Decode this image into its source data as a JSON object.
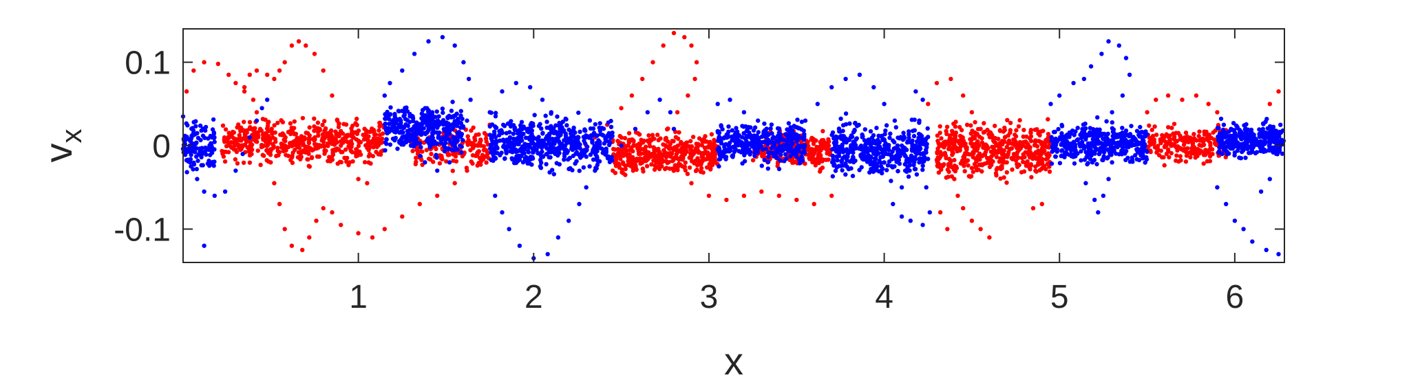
{
  "chart_data": {
    "type": "scatter",
    "title": "",
    "xlabel": "x",
    "ylabel": "v",
    "ylabel_subscript": "x",
    "xlim": [
      0,
      6.2832
    ],
    "ylim": [
      -0.14,
      0.14
    ],
    "xticks": [
      1,
      2,
      3,
      4,
      5,
      6
    ],
    "xtick_labels": [
      "1",
      "2",
      "3",
      "4",
      "5",
      "6"
    ],
    "yticks": [
      -0.1,
      0,
      0.1
    ],
    "ytick_labels": [
      "-0.1",
      "0",
      "0.1"
    ],
    "grid": false,
    "legend": "none",
    "series": [
      {
        "color": "#ff0000",
        "points": [
          [
            0.02,
            0.065
          ],
          [
            0.06,
            0.09
          ],
          [
            0.12,
            0.1
          ],
          [
            0.2,
            0.098
          ],
          [
            0.26,
            0.085
          ],
          [
            0.3,
            0.075
          ],
          [
            0.35,
            0.065
          ],
          [
            0.4,
            0.055
          ],
          [
            0.42,
            0.04
          ],
          [
            0.44,
            0.02
          ],
          [
            0.46,
            0.0
          ],
          [
            0.5,
            -0.02
          ],
          [
            0.52,
            -0.045
          ],
          [
            0.55,
            -0.07
          ],
          [
            0.58,
            -0.1
          ],
          [
            0.62,
            -0.12
          ],
          [
            0.68,
            -0.125
          ],
          [
            0.72,
            -0.11
          ],
          [
            0.76,
            -0.09
          ],
          [
            0.8,
            -0.075
          ],
          [
            0.85,
            -0.08
          ],
          [
            0.9,
            -0.095
          ],
          [
            1.0,
            -0.105
          ],
          [
            1.08,
            -0.11
          ],
          [
            1.15,
            -0.1
          ],
          [
            1.25,
            -0.085
          ],
          [
            1.35,
            -0.07
          ],
          [
            1.45,
            -0.06
          ],
          [
            1.55,
            -0.045
          ],
          [
            1.62,
            -0.03
          ],
          [
            1.68,
            -0.01
          ],
          [
            1.7,
            0.0
          ],
          [
            1.72,
            0.015
          ],
          [
            1.75,
            0.025
          ],
          [
            0.35,
            0.07
          ],
          [
            0.38,
            0.085
          ],
          [
            0.42,
            0.09
          ],
          [
            0.48,
            0.085
          ],
          [
            0.52,
            0.08
          ],
          [
            0.55,
            0.09
          ],
          [
            0.58,
            0.1
          ],
          [
            0.62,
            0.12
          ],
          [
            0.66,
            0.125
          ],
          [
            0.7,
            0.12
          ],
          [
            0.75,
            0.11
          ],
          [
            0.8,
            0.09
          ],
          [
            0.85,
            0.06
          ],
          [
            0.88,
            0.03
          ],
          [
            0.9,
            0.0
          ],
          [
            0.95,
            -0.02
          ],
          [
            1.0,
            -0.04
          ],
          [
            1.05,
            -0.045
          ],
          [
            2.3,
            0.0
          ],
          [
            2.35,
            0.01
          ],
          [
            2.42,
            0.025
          ],
          [
            2.5,
            0.045
          ],
          [
            2.56,
            0.06
          ],
          [
            2.62,
            0.08
          ],
          [
            2.68,
            0.1
          ],
          [
            2.74,
            0.12
          ],
          [
            2.8,
            0.135
          ],
          [
            2.86,
            0.13
          ],
          [
            2.9,
            0.12
          ],
          [
            2.93,
            0.1
          ],
          [
            2.92,
            0.08
          ],
          [
            2.88,
            0.06
          ],
          [
            2.82,
            0.04
          ],
          [
            2.6,
            -0.01
          ],
          [
            2.7,
            -0.02
          ],
          [
            2.8,
            -0.03
          ],
          [
            2.9,
            -0.045
          ],
          [
            3.0,
            -0.06
          ],
          [
            3.1,
            -0.065
          ],
          [
            3.2,
            -0.06
          ],
          [
            3.3,
            -0.055
          ],
          [
            3.4,
            -0.06
          ],
          [
            3.5,
            -0.065
          ],
          [
            3.6,
            -0.07
          ],
          [
            3.7,
            -0.06
          ],
          [
            4.25,
            0.05
          ],
          [
            4.3,
            0.075
          ],
          [
            4.38,
            0.08
          ],
          [
            4.45,
            0.06
          ],
          [
            4.5,
            0.04
          ],
          [
            4.55,
            0.02
          ],
          [
            4.4,
            -0.04
          ],
          [
            4.42,
            -0.06
          ],
          [
            4.45,
            -0.075
          ],
          [
            4.5,
            -0.09
          ],
          [
            4.55,
            -0.1
          ],
          [
            4.6,
            -0.11
          ],
          [
            4.32,
            -0.08
          ],
          [
            4.36,
            -0.1
          ],
          [
            4.85,
            -0.075
          ],
          [
            4.9,
            -0.07
          ],
          [
            5.5,
            0.04
          ],
          [
            5.55,
            0.055
          ],
          [
            5.62,
            0.06
          ],
          [
            5.7,
            0.055
          ],
          [
            5.78,
            0.06
          ],
          [
            5.85,
            0.05
          ],
          [
            5.9,
            0.04
          ],
          [
            6.2,
            0.05
          ],
          [
            6.25,
            0.065
          ]
        ],
        "clusters": [
          {
            "x0": 0.22,
            "x1": 1.15,
            "y0": -0.03,
            "y1": 0.04,
            "n": 520
          },
          {
            "x0": 1.3,
            "x1": 1.75,
            "y0": -0.04,
            "y1": 0.03,
            "n": 160
          },
          {
            "x0": 2.45,
            "x1": 3.05,
            "y0": -0.045,
            "y1": 0.025,
            "n": 420
          },
          {
            "x0": 3.25,
            "x1": 3.7,
            "y0": -0.035,
            "y1": 0.025,
            "n": 260
          },
          {
            "x0": 4.3,
            "x1": 4.95,
            "y0": -0.05,
            "y1": 0.04,
            "n": 480
          },
          {
            "x0": 5.5,
            "x1": 5.95,
            "y0": -0.03,
            "y1": 0.03,
            "n": 200
          }
        ]
      },
      {
        "color": "#0000ff",
        "points": [
          [
            0.0,
            0.035
          ],
          [
            0.02,
            0.01
          ],
          [
            0.04,
            -0.02
          ],
          [
            0.08,
            -0.04
          ],
          [
            0.12,
            -0.055
          ],
          [
            0.18,
            -0.06
          ],
          [
            0.24,
            -0.055
          ],
          [
            0.3,
            -0.03
          ],
          [
            0.34,
            -0.01
          ],
          [
            0.38,
            0.01
          ],
          [
            0.42,
            0.03
          ],
          [
            0.45,
            0.045
          ],
          [
            0.48,
            0.055
          ],
          [
            0.12,
            -0.12
          ],
          [
            1.15,
            0.06
          ],
          [
            1.18,
            0.075
          ],
          [
            1.25,
            0.09
          ],
          [
            1.32,
            0.11
          ],
          [
            1.4,
            0.125
          ],
          [
            1.48,
            0.13
          ],
          [
            1.55,
            0.12
          ],
          [
            1.6,
            0.1
          ],
          [
            1.63,
            0.08
          ],
          [
            1.64,
            0.055
          ],
          [
            1.62,
            0.03
          ],
          [
            1.58,
            0.0
          ],
          [
            1.52,
            -0.02
          ],
          [
            1.45,
            -0.03
          ],
          [
            1.38,
            -0.02
          ],
          [
            1.3,
            0.0
          ],
          [
            1.22,
            0.03
          ],
          [
            1.75,
            0.04
          ],
          [
            1.82,
            0.065
          ],
          [
            1.9,
            0.075
          ],
          [
            1.98,
            0.07
          ],
          [
            2.05,
            0.055
          ],
          [
            2.1,
            0.04
          ],
          [
            2.15,
            0.02
          ],
          [
            2.18,
            0.0
          ],
          [
            1.78,
            -0.06
          ],
          [
            1.82,
            -0.08
          ],
          [
            1.86,
            -0.1
          ],
          [
            1.92,
            -0.12
          ],
          [
            2.0,
            -0.135
          ],
          [
            2.08,
            -0.13
          ],
          [
            2.14,
            -0.11
          ],
          [
            2.2,
            -0.09
          ],
          [
            2.26,
            -0.07
          ],
          [
            2.3,
            -0.05
          ],
          [
            2.35,
            -0.03
          ],
          [
            2.5,
            0.0
          ],
          [
            2.58,
            0.02
          ],
          [
            2.65,
            0.04
          ],
          [
            2.72,
            0.055
          ],
          [
            2.78,
            0.04
          ],
          [
            2.8,
            0.02
          ],
          [
            3.05,
            0.05
          ],
          [
            3.12,
            0.055
          ],
          [
            3.2,
            0.04
          ],
          [
            3.28,
            0.03
          ],
          [
            3.55,
            0.03
          ],
          [
            3.62,
            0.05
          ],
          [
            3.7,
            0.07
          ],
          [
            3.78,
            0.08
          ],
          [
            3.86,
            0.085
          ],
          [
            3.94,
            0.07
          ],
          [
            4.0,
            0.05
          ],
          [
            4.06,
            0.03
          ],
          [
            4.1,
            0.0
          ],
          [
            4.12,
            -0.03
          ],
          [
            4.1,
            -0.05
          ],
          [
            4.05,
            -0.07
          ],
          [
            4.1,
            -0.085
          ],
          [
            4.15,
            -0.09
          ],
          [
            4.22,
            -0.095
          ],
          [
            4.26,
            -0.08
          ],
          [
            4.24,
            -0.05
          ],
          [
            4.2,
            -0.02
          ],
          [
            4.18,
            0.0
          ],
          [
            4.2,
            0.03
          ],
          [
            4.22,
            0.055
          ],
          [
            4.18,
            0.065
          ],
          [
            4.95,
            0.05
          ],
          [
            5.0,
            0.06
          ],
          [
            5.08,
            0.075
          ],
          [
            5.14,
            0.08
          ],
          [
            5.18,
            0.095
          ],
          [
            5.24,
            0.11
          ],
          [
            5.28,
            0.125
          ],
          [
            5.34,
            0.12
          ],
          [
            5.38,
            0.105
          ],
          [
            5.4,
            0.085
          ],
          [
            5.36,
            0.06
          ],
          [
            5.3,
            0.04
          ],
          [
            5.3,
            -0.02
          ],
          [
            5.28,
            -0.04
          ],
          [
            5.25,
            -0.06
          ],
          [
            5.22,
            -0.08
          ],
          [
            5.2,
            -0.065
          ],
          [
            5.15,
            -0.045
          ],
          [
            5.9,
            -0.05
          ],
          [
            5.95,
            -0.07
          ],
          [
            6.0,
            -0.09
          ],
          [
            6.05,
            -0.1
          ],
          [
            6.1,
            -0.115
          ],
          [
            6.18,
            -0.125
          ],
          [
            6.25,
            -0.13
          ],
          [
            6.15,
            -0.055
          ],
          [
            6.2,
            -0.04
          ]
        ],
        "clusters": [
          {
            "x0": 0.0,
            "x1": 0.18,
            "y0": -0.04,
            "y1": 0.04,
            "n": 120
          },
          {
            "x0": 1.15,
            "x1": 1.6,
            "y0": -0.02,
            "y1": 0.06,
            "n": 360
          },
          {
            "x0": 1.75,
            "x1": 2.45,
            "y0": -0.04,
            "y1": 0.045,
            "n": 520
          },
          {
            "x0": 3.05,
            "x1": 3.55,
            "y0": -0.03,
            "y1": 0.035,
            "n": 340
          },
          {
            "x0": 3.7,
            "x1": 4.25,
            "y0": -0.05,
            "y1": 0.04,
            "n": 420
          },
          {
            "x0": 4.95,
            "x1": 5.5,
            "y0": -0.03,
            "y1": 0.035,
            "n": 380
          },
          {
            "x0": 5.9,
            "x1": 6.28,
            "y0": -0.02,
            "y1": 0.035,
            "n": 300
          }
        ]
      }
    ]
  }
}
